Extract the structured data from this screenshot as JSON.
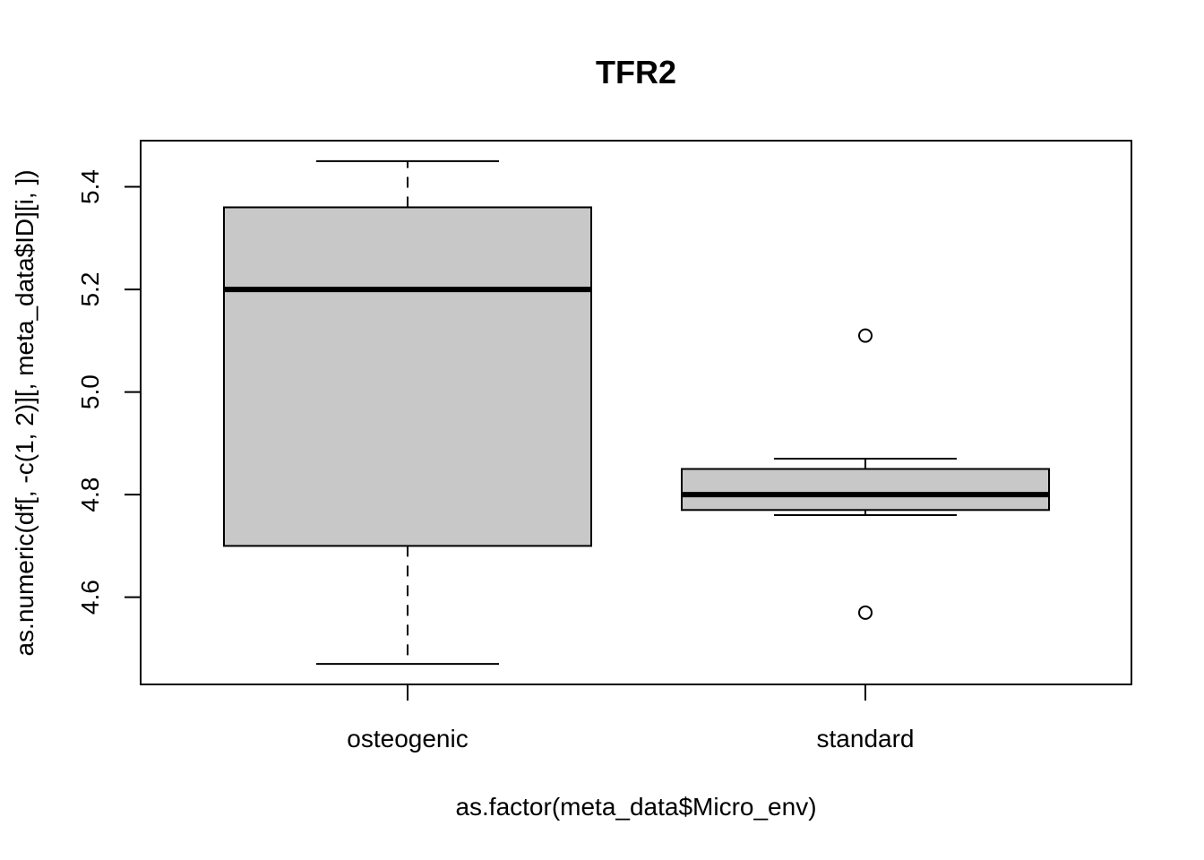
{
  "chart_data": {
    "type": "boxplot",
    "title": "TFR2",
    "xlabel": "as.factor(meta_data$Micro_env)",
    "ylabel": "as.numeric(df[, -c(1, 2)][, meta_data$ID][i, ])",
    "categories": [
      "osteogenic",
      "standard"
    ],
    "ylim": [
      4.43,
      5.49
    ],
    "yticks": [
      4.6,
      4.8,
      5.0,
      5.2,
      5.4
    ],
    "ytick_labels": [
      "4.6",
      "4.8",
      "5.0",
      "5.2",
      "5.4"
    ],
    "boxes": [
      {
        "category": "osteogenic",
        "whisker_low": 4.47,
        "q1": 4.7,
        "median": 5.2,
        "q3": 5.36,
        "whisker_high": 5.45,
        "outliers": []
      },
      {
        "category": "standard",
        "whisker_low": 4.76,
        "q1": 4.77,
        "median": 4.8,
        "q3": 4.85,
        "whisker_high": 4.87,
        "outliers": [
          5.11,
          4.57
        ]
      }
    ],
    "box_fill": "#c8c8c8",
    "grid": false,
    "legend": "none"
  }
}
